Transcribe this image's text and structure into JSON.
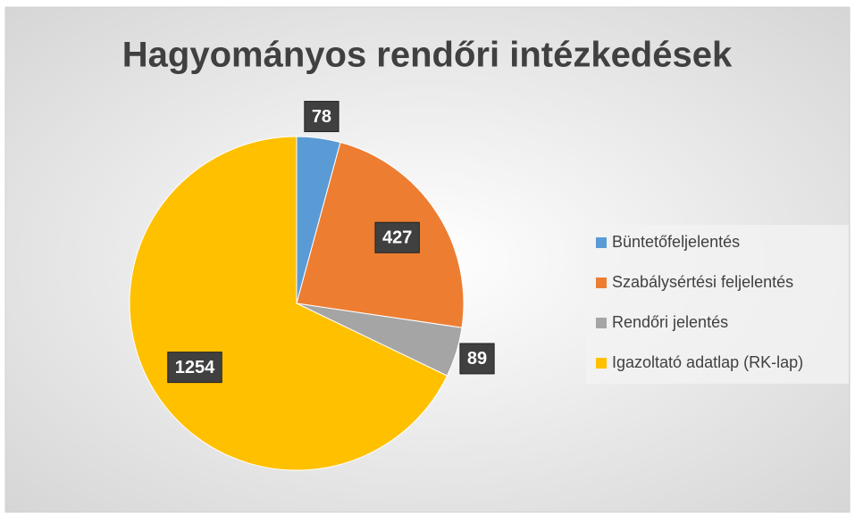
{
  "chart_data": {
    "type": "pie",
    "title": "Hagyományos rendőri intézkedések",
    "categories": [
      "Büntetőfeljelentés",
      "Szabálysértési feljelentés",
      "Rendőri jelentés",
      "Igazoltató adatlap (RK-lap)"
    ],
    "values": [
      78,
      427,
      89,
      1254
    ],
    "colors": [
      "#5b9bd5",
      "#ed7d31",
      "#a5a5a5",
      "#ffc000"
    ],
    "legend": "right"
  }
}
